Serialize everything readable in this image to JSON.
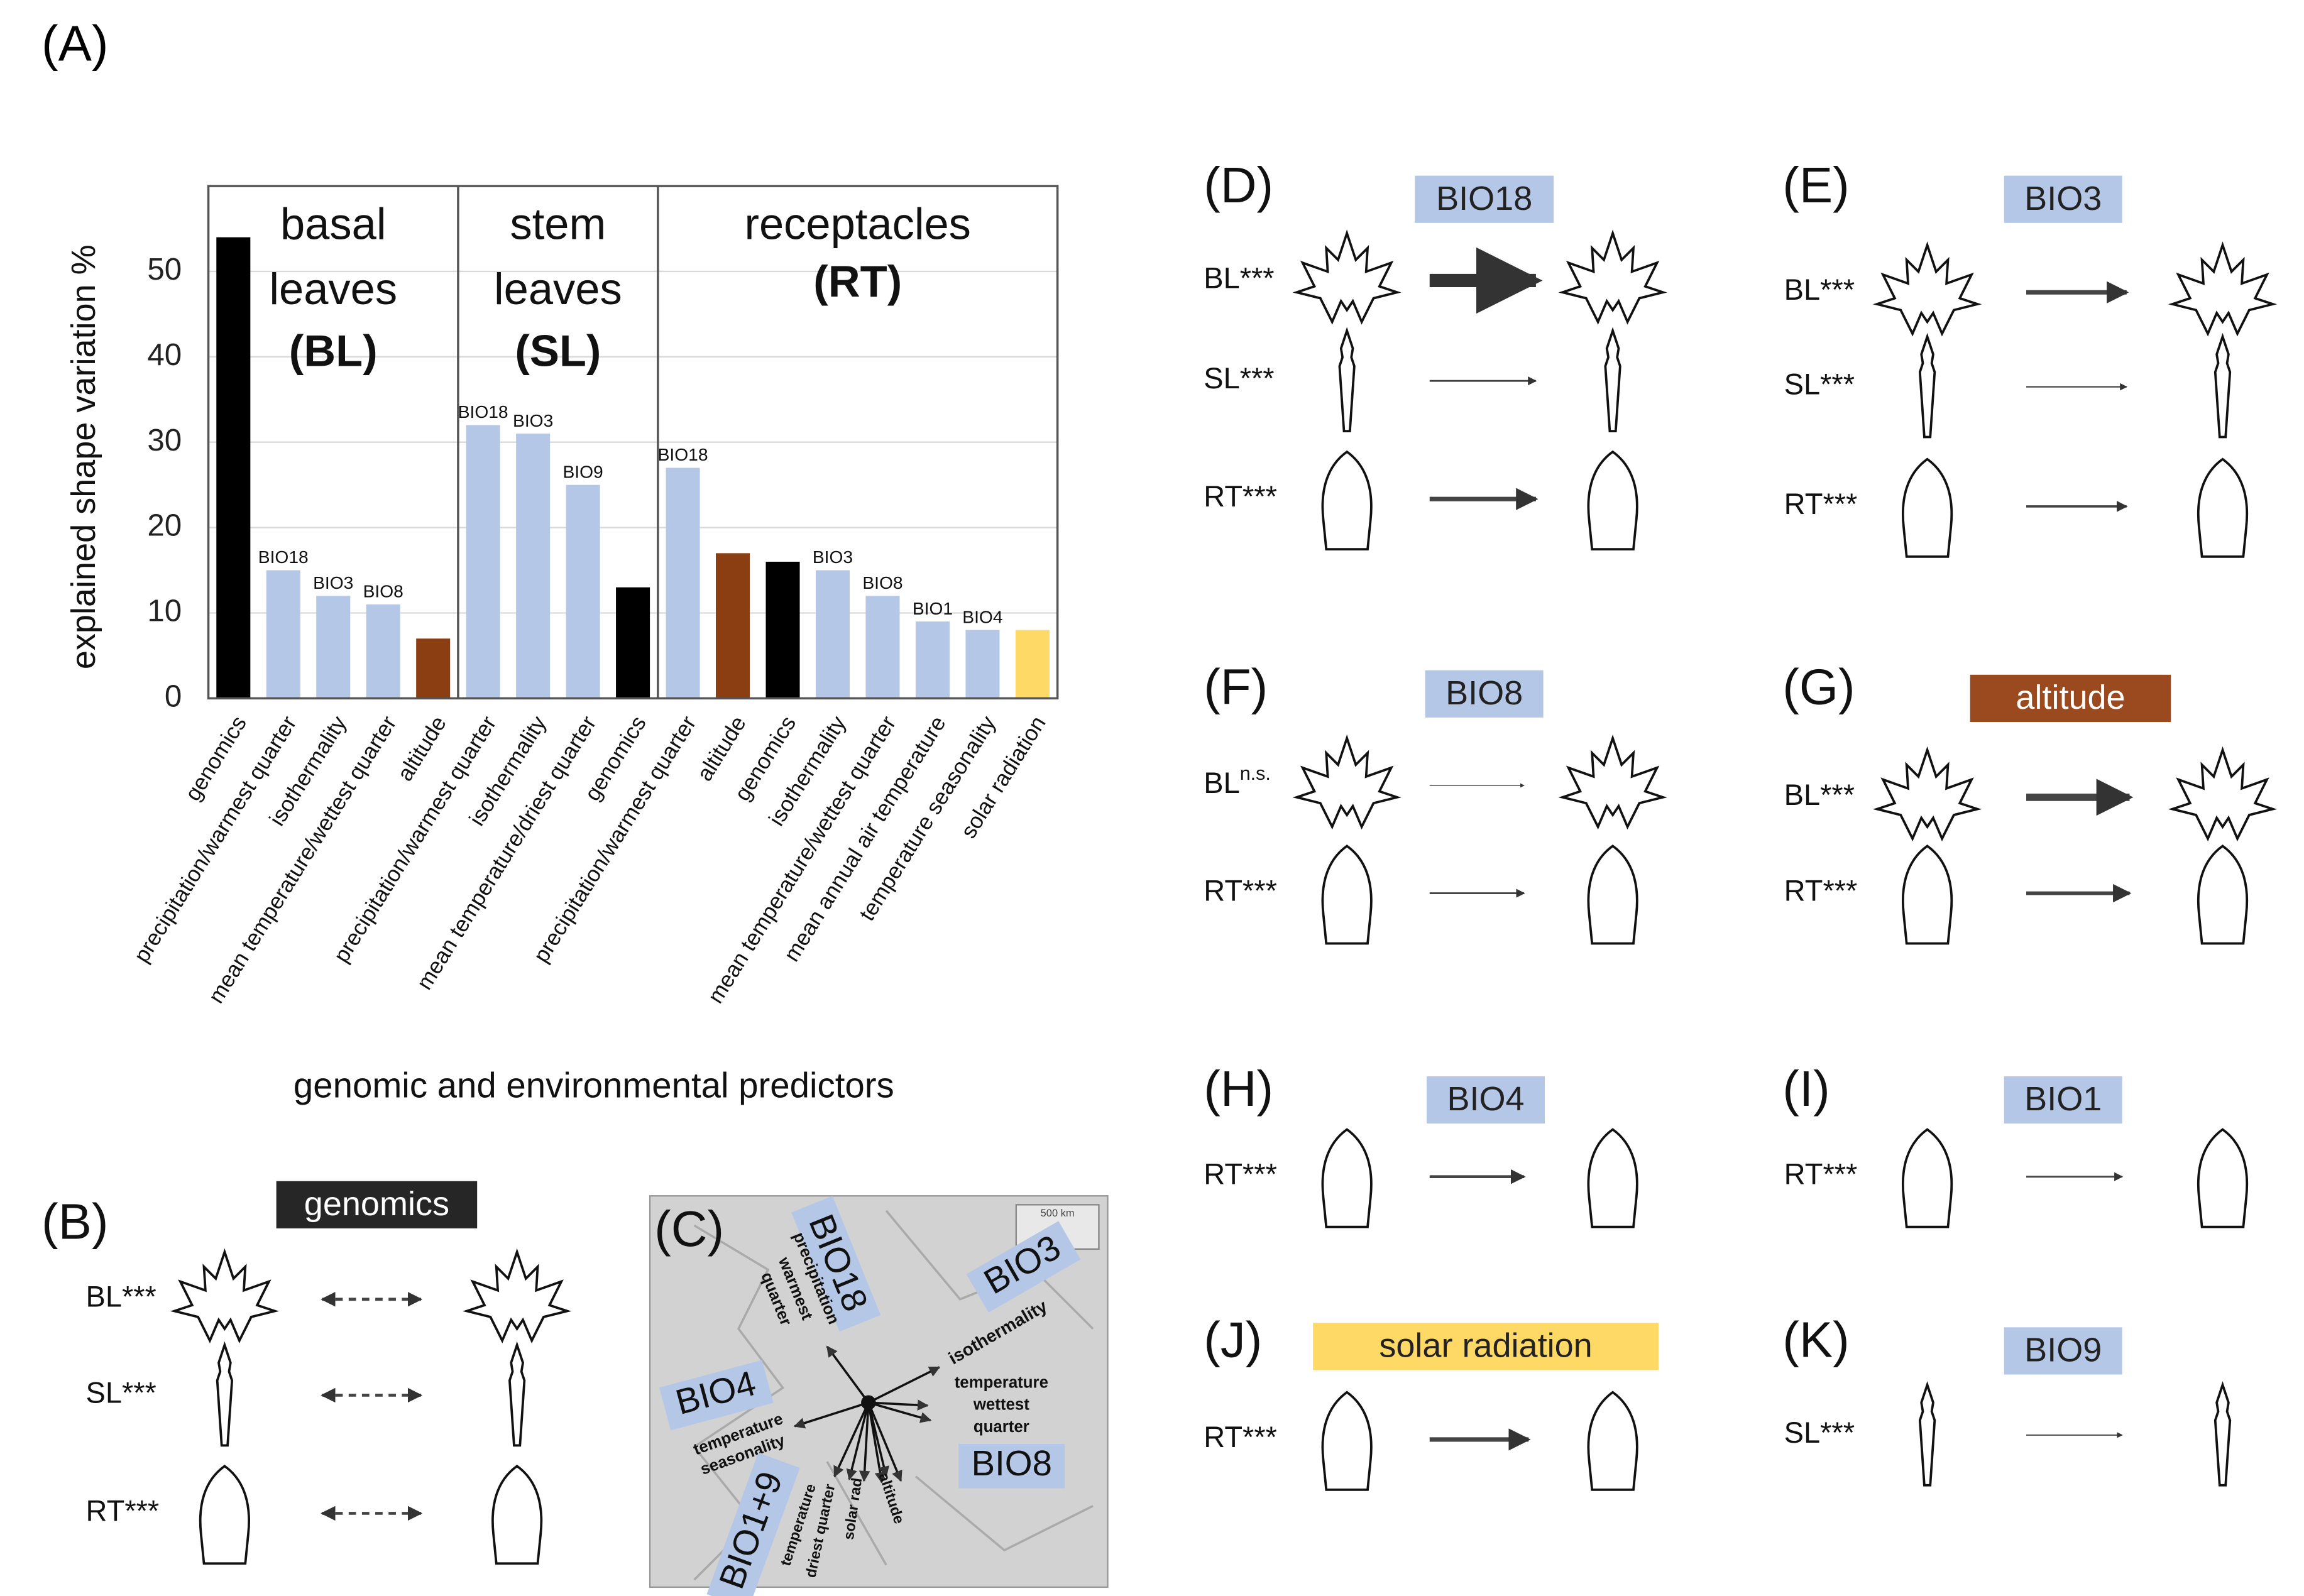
{
  "panel_A": "(A)",
  "chart_data": {
    "type": "bar",
    "ylabel": "explained shape variation %",
    "xlabel": "genomic and environmental predictors",
    "categories": [
      "genomics",
      "precipitation/warmest quarter",
      "isothermality",
      "mean temperature/wettest quarter",
      "altitude",
      "precipitation/warmest quarter",
      "isothermality",
      "mean temperature/driest quarter",
      "genomics",
      "precipitation/warmest quarter",
      "altitude",
      "genomics",
      "isothermality",
      "mean temperature/wettest quarter",
      "mean annual air temperature",
      "temperature seasonality",
      "solar radiation"
    ],
    "values": [
      54,
      15,
      12,
      11,
      7,
      32,
      31,
      25,
      13,
      27,
      17,
      16,
      15,
      12,
      9,
      8,
      8
    ],
    "bar_labels": [
      null,
      "BIO18",
      "BIO3",
      "BIO8",
      null,
      "BIO18",
      "BIO3",
      "BIO9",
      null,
      "BIO18",
      null,
      null,
      "BIO3",
      "BIO8",
      "BIO1",
      "BIO4",
      null
    ],
    "colors": [
      "#000000",
      "#b4c7e7",
      "#b4c7e7",
      "#b4c7e7",
      "#8b3e12",
      "#b4c7e7",
      "#b4c7e7",
      "#b4c7e7",
      "#000000",
      "#b4c7e7",
      "#8b3e12",
      "#000000",
      "#b4c7e7",
      "#b4c7e7",
      "#b4c7e7",
      "#b4c7e7",
      "#ffd966"
    ],
    "groups": [
      {
        "lines": [
          "basal",
          "leaves"
        ],
        "abbr": "(BL)",
        "size": 5
      },
      {
        "lines": [
          "stem",
          "leaves"
        ],
        "abbr": "(SL)",
        "size": 4
      },
      {
        "lines": [
          "receptacles"
        ],
        "abbr": "(RT)",
        "size": 8
      }
    ],
    "ylim": [
      0,
      60
    ],
    "yticks": [
      0,
      10,
      20,
      30,
      40,
      50
    ],
    "grid": true
  },
  "panels": [
    {
      "letter": "(B)",
      "tag": "genomics",
      "tag_color": "#262626",
      "tag_text": "#ffffff",
      "rows": [
        {
          "organ": "BL",
          "sig": "***"
        },
        {
          "organ": "SL",
          "sig": "***"
        },
        {
          "organ": "RT",
          "sig": "***"
        }
      ]
    },
    {
      "letter": "(D)",
      "tag": "BIO18",
      "tag_color": "#b4c7e7",
      "tag_text": "#222222",
      "rows": [
        {
          "organ": "BL",
          "sig": "***"
        },
        {
          "organ": "SL",
          "sig": "***"
        },
        {
          "organ": "RT",
          "sig": "***"
        }
      ]
    },
    {
      "letter": "(E)",
      "tag": "BIO3",
      "tag_color": "#b4c7e7",
      "tag_text": "#222222",
      "rows": [
        {
          "organ": "BL",
          "sig": "***"
        },
        {
          "organ": "SL",
          "sig": "***"
        },
        {
          "organ": "RT",
          "sig": "***"
        }
      ]
    },
    {
      "letter": "(F)",
      "tag": "BIO8",
      "tag_color": "#b4c7e7",
      "tag_text": "#222222",
      "rows": [
        {
          "organ": "BL",
          "sig": "n.s."
        },
        {
          "organ": "RT",
          "sig": "***"
        }
      ]
    },
    {
      "letter": "(G)",
      "tag": "altitude",
      "tag_color": "#9a4a1e",
      "tag_text": "#ffffff",
      "rows": [
        {
          "organ": "BL",
          "sig": "***"
        },
        {
          "organ": "RT",
          "sig": "***"
        }
      ]
    },
    {
      "letter": "(H)",
      "tag": "BIO4",
      "tag_color": "#b4c7e7",
      "tag_text": "#222222",
      "rows": [
        {
          "organ": "RT",
          "sig": "***"
        }
      ]
    },
    {
      "letter": "(I)",
      "tag": "BIO1",
      "tag_color": "#b4c7e7",
      "tag_text": "#222222",
      "rows": [
        {
          "organ": "RT",
          "sig": "***"
        }
      ]
    },
    {
      "letter": "(J)",
      "tag": "solar radiation",
      "tag_color": "#ffd966",
      "tag_text": "#222222",
      "rows": [
        {
          "organ": "RT",
          "sig": "***"
        }
      ]
    },
    {
      "letter": "(K)",
      "tag": "BIO9",
      "tag_color": "#b4c7e7",
      "tag_text": "#222222",
      "rows": [
        {
          "organ": "SL",
          "sig": "***"
        }
      ]
    }
  ],
  "map": {
    "letter": "(C)",
    "scale": "500 km",
    "labels": [
      "BIO18",
      "precipitation",
      "warmest",
      "quarter",
      "BIO3",
      "isothermality",
      "BIO4",
      "temperature",
      "seasonality",
      "temperature",
      "wettest",
      "quarter",
      "BIO8",
      "BIO1+9",
      "temperature",
      "driest quarter",
      "solar rad",
      "altitude"
    ]
  }
}
